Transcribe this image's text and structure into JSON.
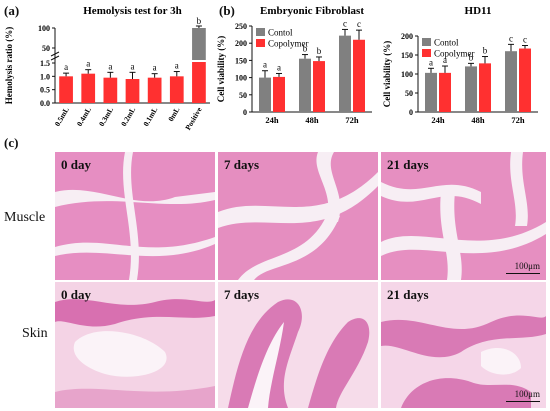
{
  "panels": {
    "a": "(a)",
    "b": "(b)",
    "c": "(c)"
  },
  "colors": {
    "control": "#808080",
    "copolymer": "#ff3030",
    "positive_top": "#808080",
    "positive_bottom": "#ff3030",
    "muscle_base": "#e58fc0",
    "skin_base": "#f3cfe2"
  },
  "chart_data": [
    {
      "type": "bar",
      "title": "Hemolysis test for 3h",
      "ylabel": "Hemolysis ratio (%)",
      "ylim": [
        0,
        100
      ],
      "categories": [
        "0.5mL",
        "0.4mL",
        "0.3mL",
        "0.2mL",
        "0.1mL",
        "0mL",
        "Positive"
      ],
      "values": [
        1.0,
        1.1,
        0.95,
        0.9,
        0.95,
        1.0,
        100
      ],
      "errors": [
        0.12,
        0.15,
        0.2,
        0.25,
        0.15,
        0.18,
        6
      ],
      "significance": [
        "a",
        "a",
        "a",
        "a",
        "a",
        "a",
        "b"
      ],
      "ytick_labels": [
        "0.0",
        "0.5",
        "1.0",
        "1.5",
        "50",
        "100"
      ],
      "axis_break": true
    },
    {
      "type": "bar",
      "title": "Embryonic Fibroblast",
      "ylabel": "Cell viability (%)",
      "ylim": [
        0,
        250
      ],
      "categories": [
        "24h",
        "48h",
        "72h"
      ],
      "ytick_labels": [
        "0",
        "50",
        "100",
        "150",
        "200",
        "250"
      ],
      "series": [
        {
          "name": "Contol",
          "values": [
            100,
            155,
            222
          ],
          "errors": [
            20,
            12,
            18
          ]
        },
        {
          "name": "Copolymer",
          "values": [
            102,
            148,
            210
          ],
          "errors": [
            10,
            12,
            28
          ]
        }
      ],
      "significance": [
        [
          "a",
          "a"
        ],
        [
          "b",
          "b"
        ],
        [
          "c",
          "c"
        ]
      ],
      "legend": "top-left"
    },
    {
      "type": "bar",
      "title": "HD11",
      "ylabel": "Cell viability (%)",
      "ylim": [
        0,
        200
      ],
      "categories": [
        "24h",
        "48h",
        "72h"
      ],
      "ytick_labels": [
        "0",
        "50",
        "100",
        "150",
        "200"
      ],
      "series": [
        {
          "name": "Contol",
          "values": [
            103,
            120,
            160
          ],
          "errors": [
            12,
            8,
            18
          ]
        },
        {
          "name": "Copolymer",
          "values": [
            103,
            128,
            167
          ],
          "errors": [
            18,
            18,
            8
          ]
        }
      ],
      "significance": [
        [
          "a",
          "a"
        ],
        [
          "b",
          "b"
        ],
        [
          "c",
          "c"
        ]
      ],
      "legend": "top-left"
    }
  ],
  "histology": {
    "rows": [
      {
        "label": "Muscle",
        "tiles": [
          "0 day",
          "7 days",
          "21 days"
        ],
        "scale": "100μm"
      },
      {
        "label": "Skin",
        "tiles": [
          "0 day",
          "7 days",
          "21 days"
        ],
        "scale": "100μm"
      }
    ]
  }
}
